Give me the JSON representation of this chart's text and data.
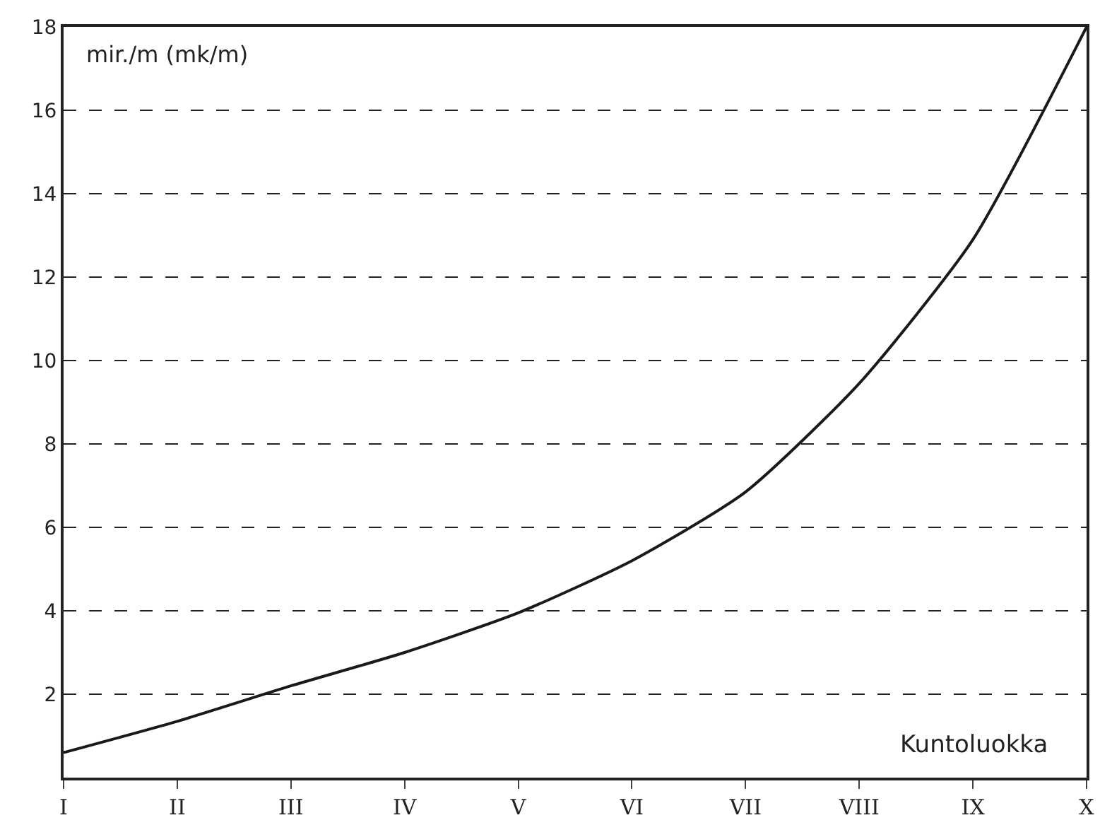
{
  "chart_data": {
    "type": "line",
    "xlabel": "Kuntoluokka",
    "ylabel": "mir./m (mk/m)",
    "categories": [
      "I",
      "II",
      "III",
      "IV",
      "V",
      "VI",
      "VII",
      "VIII",
      "IX",
      "X"
    ],
    "series": [
      {
        "color": "#1a1a1a",
        "values": [
          0.6,
          1.35,
          2.2,
          3.0,
          3.95,
          5.2,
          6.85,
          9.45,
          12.9,
          18
        ]
      }
    ],
    "ylim": [
      0,
      18
    ],
    "yticks": [
      2,
      4,
      6,
      8,
      10,
      12,
      14,
      16,
      18
    ],
    "grid": "y",
    "marker": "none",
    "line_style": "solid"
  }
}
